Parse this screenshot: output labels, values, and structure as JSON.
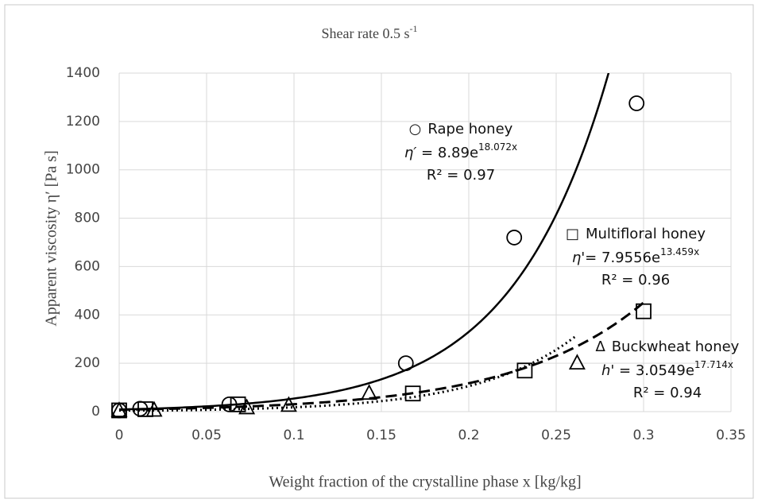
{
  "chart_data": {
    "type": "scatter",
    "title": "Shear rate 0.5 s",
    "title_sup": "-1",
    "x_label": "Weight fraction of the crystalline phase x [kg/kg]",
    "y_label": "Apparent viscosity η′ [Pa s]",
    "xlim": [
      0,
      0.35
    ],
    "xticks": [
      0,
      0.05,
      0.1,
      0.15,
      0.2,
      0.25,
      0.3,
      0.35
    ],
    "ylim": [
      0,
      1400
    ],
    "yticks": [
      0,
      200,
      400,
      600,
      800,
      1000,
      1200,
      1400
    ],
    "grid": true,
    "series": [
      {
        "name": "Rape honey",
        "symbol": "○",
        "marker": "circle",
        "color": "#000000",
        "x": [
          0,
          0.012,
          0.063,
          0.164,
          0.226,
          0.296
        ],
        "values": [
          5,
          12,
          30,
          200,
          720,
          1275
        ],
        "fit": {
          "a": 8.89,
          "b": 18.072,
          "range": [
            0,
            0.3
          ],
          "style": "solid",
          "eq_prefix": "η′ = ",
          "eq_base": "e",
          "eq_var": "x",
          "r2_prefix": "R² = ",
          "r2": 0.97
        }
      },
      {
        "name": "Multifloral honey",
        "symbol": "□",
        "marker": "square",
        "color": "#000000",
        "x": [
          0,
          0.015,
          0.068,
          0.168,
          0.232,
          0.3
        ],
        "values": [
          5,
          10,
          30,
          75,
          170,
          415
        ],
        "fit": {
          "a": 7.9556,
          "b": 13.459,
          "range": [
            0,
            0.3
          ],
          "style": "dashed",
          "eq_prefix": "η'= ",
          "eq_base": "e",
          "eq_var": "x",
          "r2_prefix": "R² = ",
          "r2": 0.96
        }
      },
      {
        "name": "Buckwheat honey",
        "symbol": "∆",
        "marker": "triangle",
        "color": "#000000",
        "x": [
          0,
          0.02,
          0.073,
          0.097,
          0.143,
          0.262
        ],
        "values": [
          3,
          5,
          15,
          25,
          75,
          200
        ],
        "fit": {
          "a": 3.0549,
          "b": 17.714,
          "range": [
            0,
            0.262
          ],
          "style": "dotted",
          "eq_prefix": "h' = ",
          "eq_base": "e",
          "eq_var": "x",
          "r2_prefix": "R² = ",
          "r2": 0.94
        }
      }
    ]
  }
}
